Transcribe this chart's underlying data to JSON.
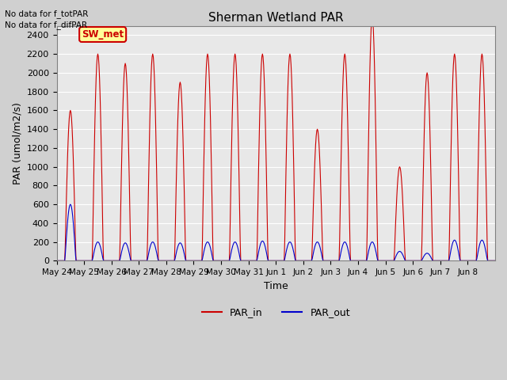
{
  "title": "Sherman Wetland PAR",
  "xlabel": "Time",
  "ylabel": "PAR (umol/m2/s)",
  "ylim": [
    0,
    2500
  ],
  "yticks": [
    0,
    200,
    400,
    600,
    800,
    1000,
    1200,
    1400,
    1600,
    1800,
    2000,
    2200,
    2400
  ],
  "annotation_lines": [
    "No data for f_totPAR",
    "No data for f_difPAR"
  ],
  "legend_label1": "PAR_in",
  "legend_label2": "PAR_out",
  "color_in": "#cc0000",
  "color_out": "#0000cc",
  "inset_label": "SW_met",
  "inset_bg": "#ffff99",
  "inset_border": "#cc0000",
  "bg_color": "#e8e8e8",
  "grid_color": "#ffffff",
  "num_days": 16,
  "figsize": [
    6.4,
    4.8
  ],
  "dpi": 100,
  "peak_in_vals": [
    1600,
    2200,
    2100,
    2200,
    1900,
    2200,
    2200,
    2200,
    2200,
    1400,
    2200,
    2600,
    1000,
    2000,
    2200,
    2200
  ],
  "peak_out_vals": [
    600,
    200,
    190,
    200,
    190,
    200,
    200,
    210,
    200,
    200,
    200,
    200,
    100,
    80,
    220,
    220
  ],
  "x_tick_labels": [
    "May 24",
    "May 25",
    "May 26",
    "May 27",
    "May 28",
    "May 29",
    "May 30",
    "May 31",
    "Jun 1",
    "Jun 2",
    "Jun 3",
    "Jun 4",
    "Jun 5",
    "Jun 6",
    "Jun 7",
    "Jun 8"
  ]
}
